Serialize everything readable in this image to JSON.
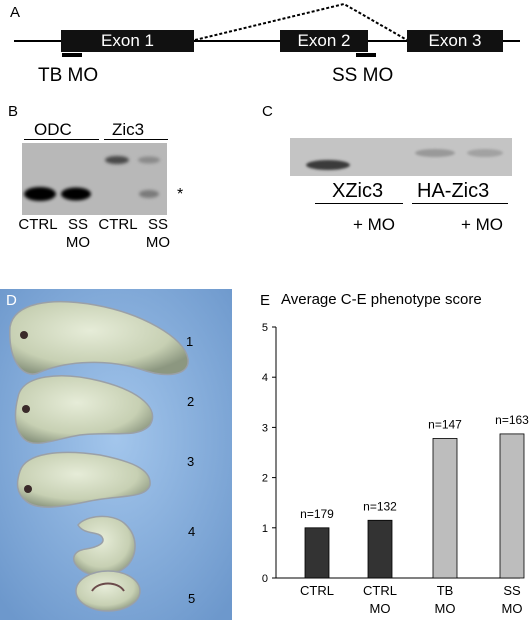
{
  "panelA": {
    "label": "A",
    "exons": [
      "Exon 1",
      "Exon 2",
      "Exon 3"
    ],
    "mo_labels": [
      "TB MO",
      "SS MO"
    ]
  },
  "panelB": {
    "label": "B",
    "groups": [
      "ODC",
      "Zic3"
    ],
    "lanes": [
      {
        "line1": "CTRL",
        "line2": ""
      },
      {
        "line1": "SS",
        "line2": "MO"
      },
      {
        "line1": "CTRL",
        "line2": ""
      },
      {
        "line1": "SS",
        "line2": "MO"
      }
    ],
    "asterisk": "*"
  },
  "panelC": {
    "label": "C",
    "groups": [
      "XZic3",
      "HA-Zic3"
    ],
    "mo_labels": [
      "+ MO",
      "+ MO"
    ]
  },
  "panelD": {
    "label": "D",
    "embryo_numbers": [
      "1",
      "2",
      "3",
      "4",
      "5"
    ]
  },
  "panelE": {
    "label": "E"
  },
  "chart_data": {
    "type": "bar",
    "title": "Average C-E phenotype score",
    "categories": [
      "CTRL",
      "CTRL MO",
      "TB MO",
      "SS MO"
    ],
    "category_lines": [
      [
        "CTRL",
        ""
      ],
      [
        "CTRL",
        "MO"
      ],
      [
        "TB",
        "MO"
      ],
      [
        "SS",
        "MO"
      ]
    ],
    "values": [
      1.0,
      1.15,
      2.78,
      2.87
    ],
    "n_labels": [
      "n=179",
      "n=132",
      "n=147",
      "n=163"
    ],
    "bar_colors": [
      "#333333",
      "#333333",
      "#bdbdbd",
      "#bdbdbd"
    ],
    "ylim": [
      0,
      5
    ],
    "yticks": [
      "0",
      "1",
      "2",
      "3",
      "4",
      "5"
    ],
    "xlabel": "",
    "ylabel": "",
    "grid": false
  }
}
